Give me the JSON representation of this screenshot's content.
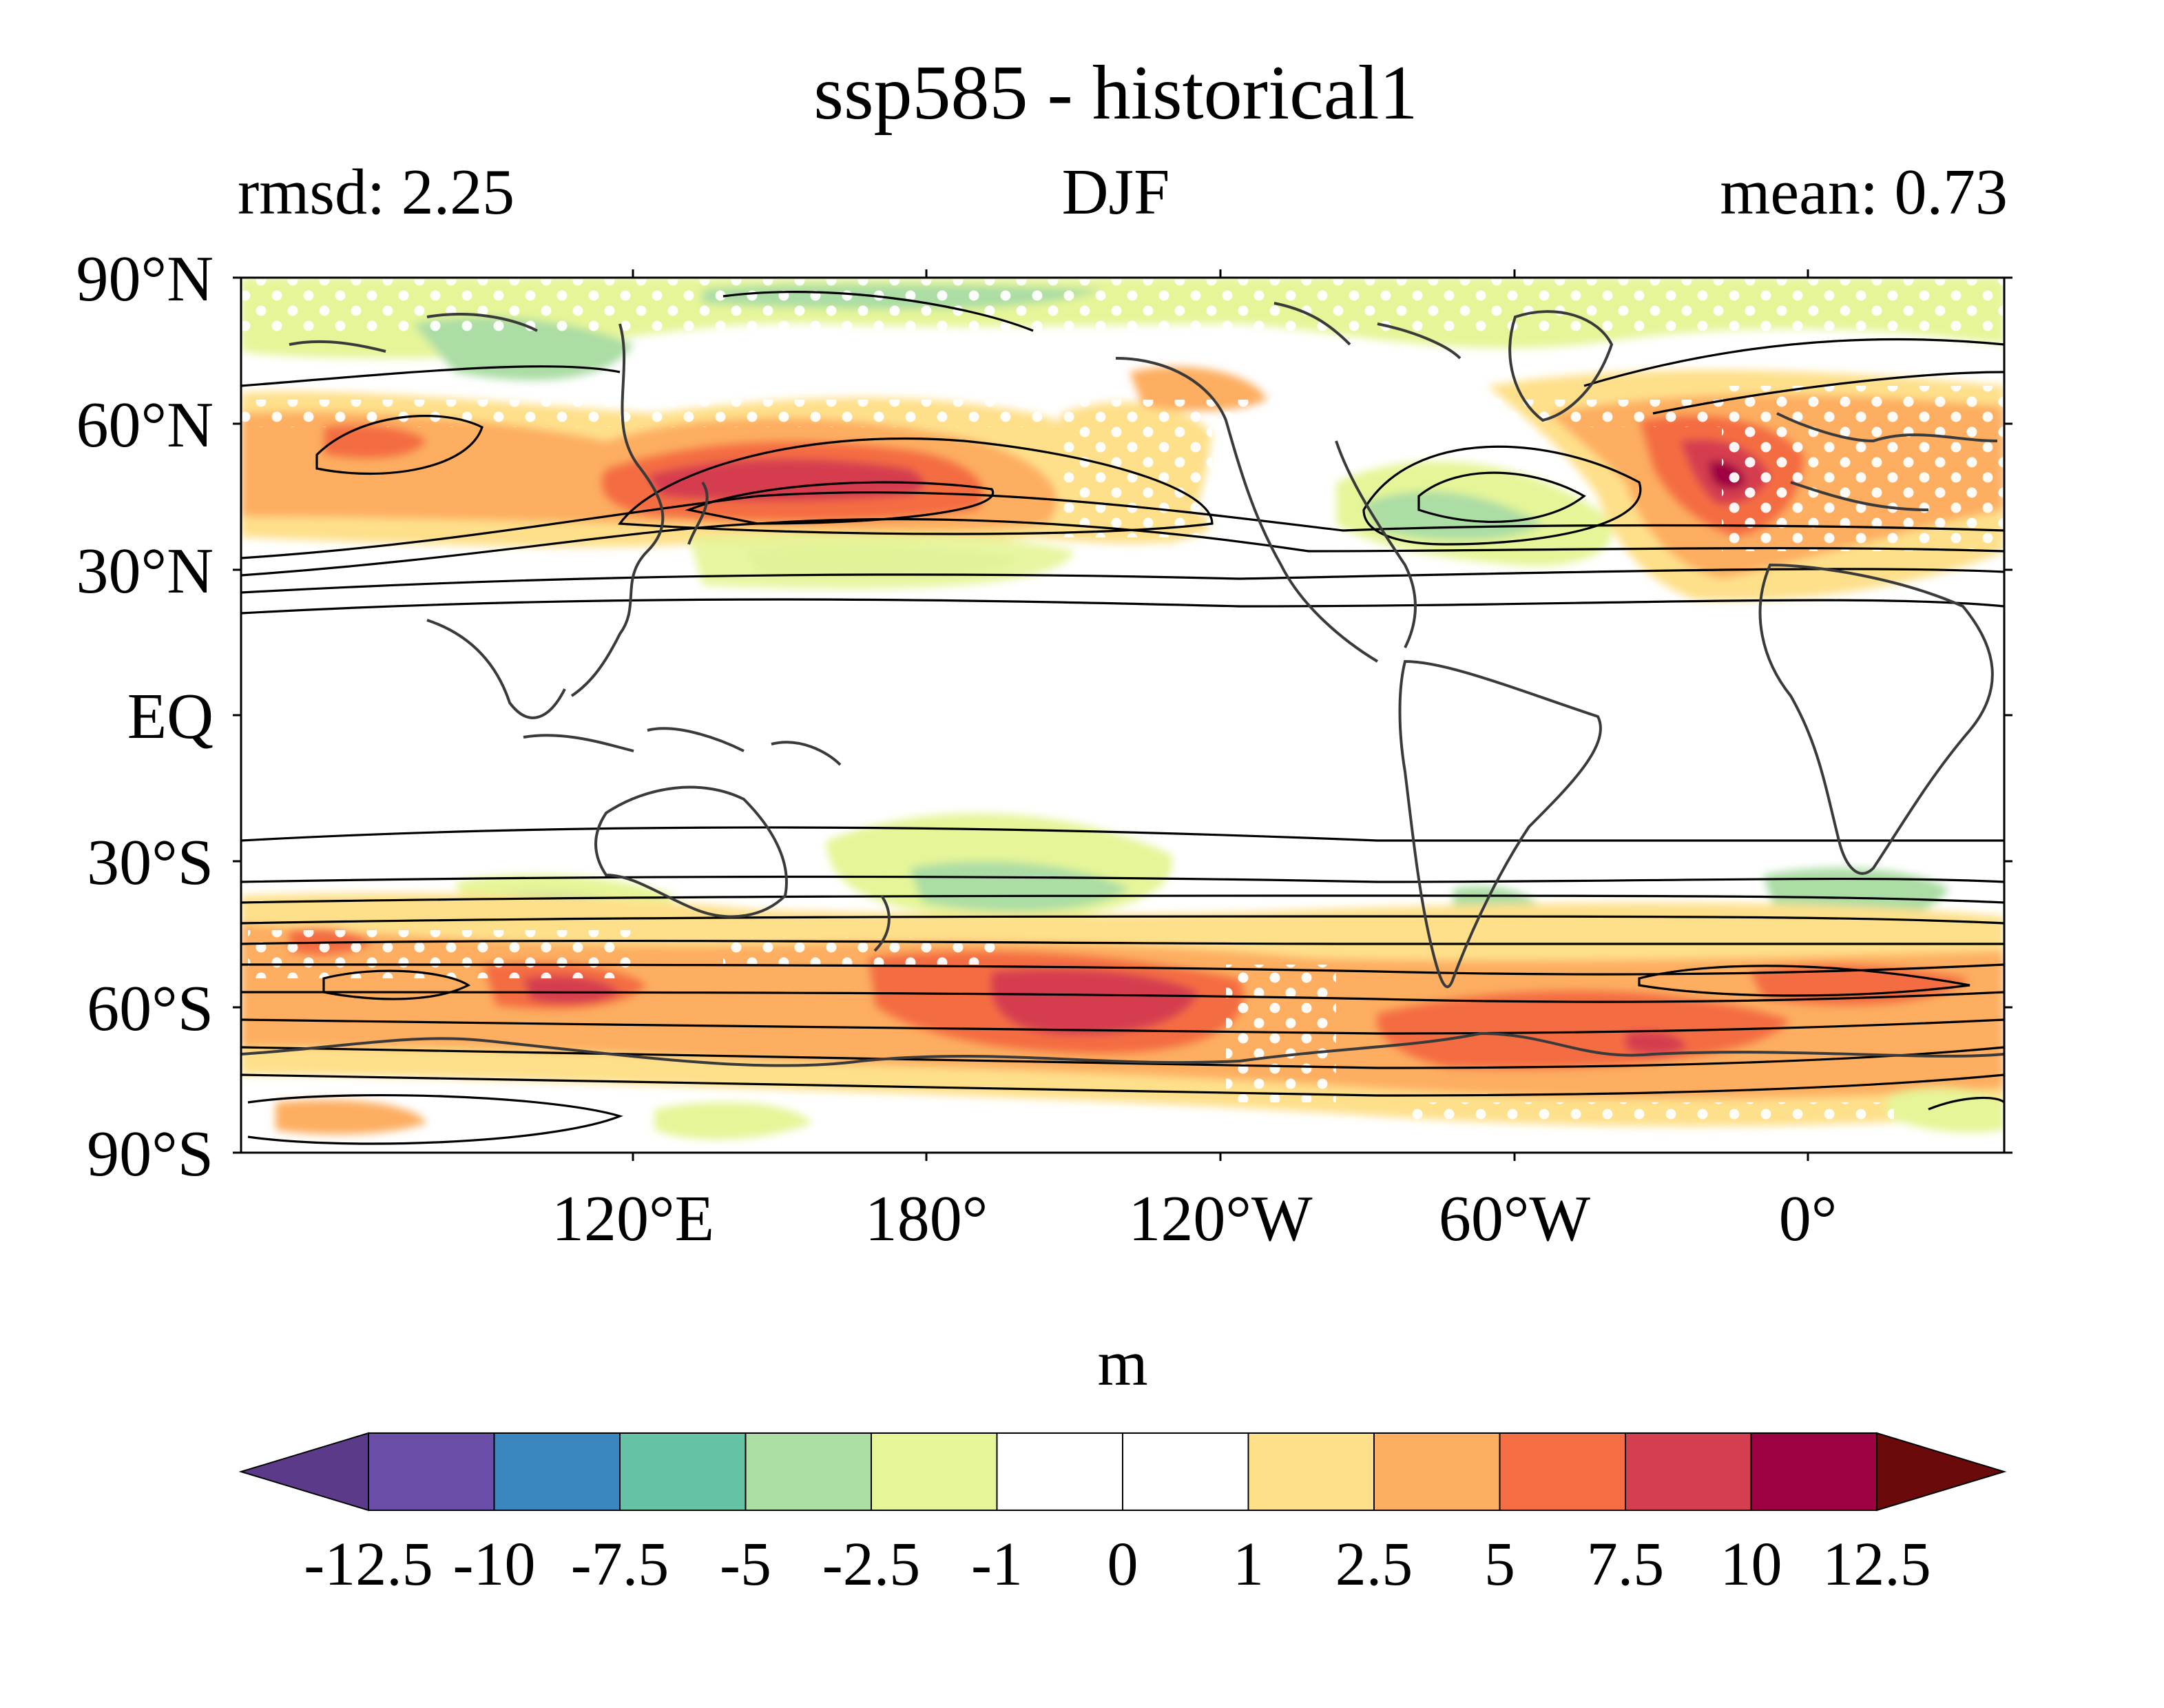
{
  "title": "ssp585 - historical1",
  "left_label": "rmsd: 2.25",
  "center_label": "DJF",
  "right_label": "mean: 0.73",
  "lat_ticks": [
    "90°N",
    "60°N",
    "30°N",
    "EQ",
    "30°S",
    "60°S",
    "90°S"
  ],
  "lon_ticks": [
    "120°E",
    "180°",
    "120°W",
    "60°W",
    "0°"
  ],
  "colorbar": {
    "unit": "m",
    "levels": [
      "-12.5",
      "-10",
      "-7.5",
      "-5",
      "-2.5",
      "-1",
      "0",
      "1",
      "2.5",
      "5",
      "7.5",
      "10",
      "12.5"
    ],
    "colors": [
      "#5b3a8a",
      "#6a4ea8",
      "#3a87c0",
      "#66c2a5",
      "#abdda4",
      "#e6f598",
      "#ffffff",
      "#ffffff",
      "#fee08b",
      "#fdae61",
      "#f46d43",
      "#d53e4f",
      "#9e0142",
      "#6b0a0a"
    ]
  },
  "chart_data": {
    "type": "map",
    "projection": "cylindrical equidistant, centered 150°W",
    "season": "DJF",
    "rmsd": 2.25,
    "mean": 0.73,
    "units": "m",
    "field": "shaded difference ssp585 minus historical1, with black climatology contours and white stippling for significance"
  }
}
